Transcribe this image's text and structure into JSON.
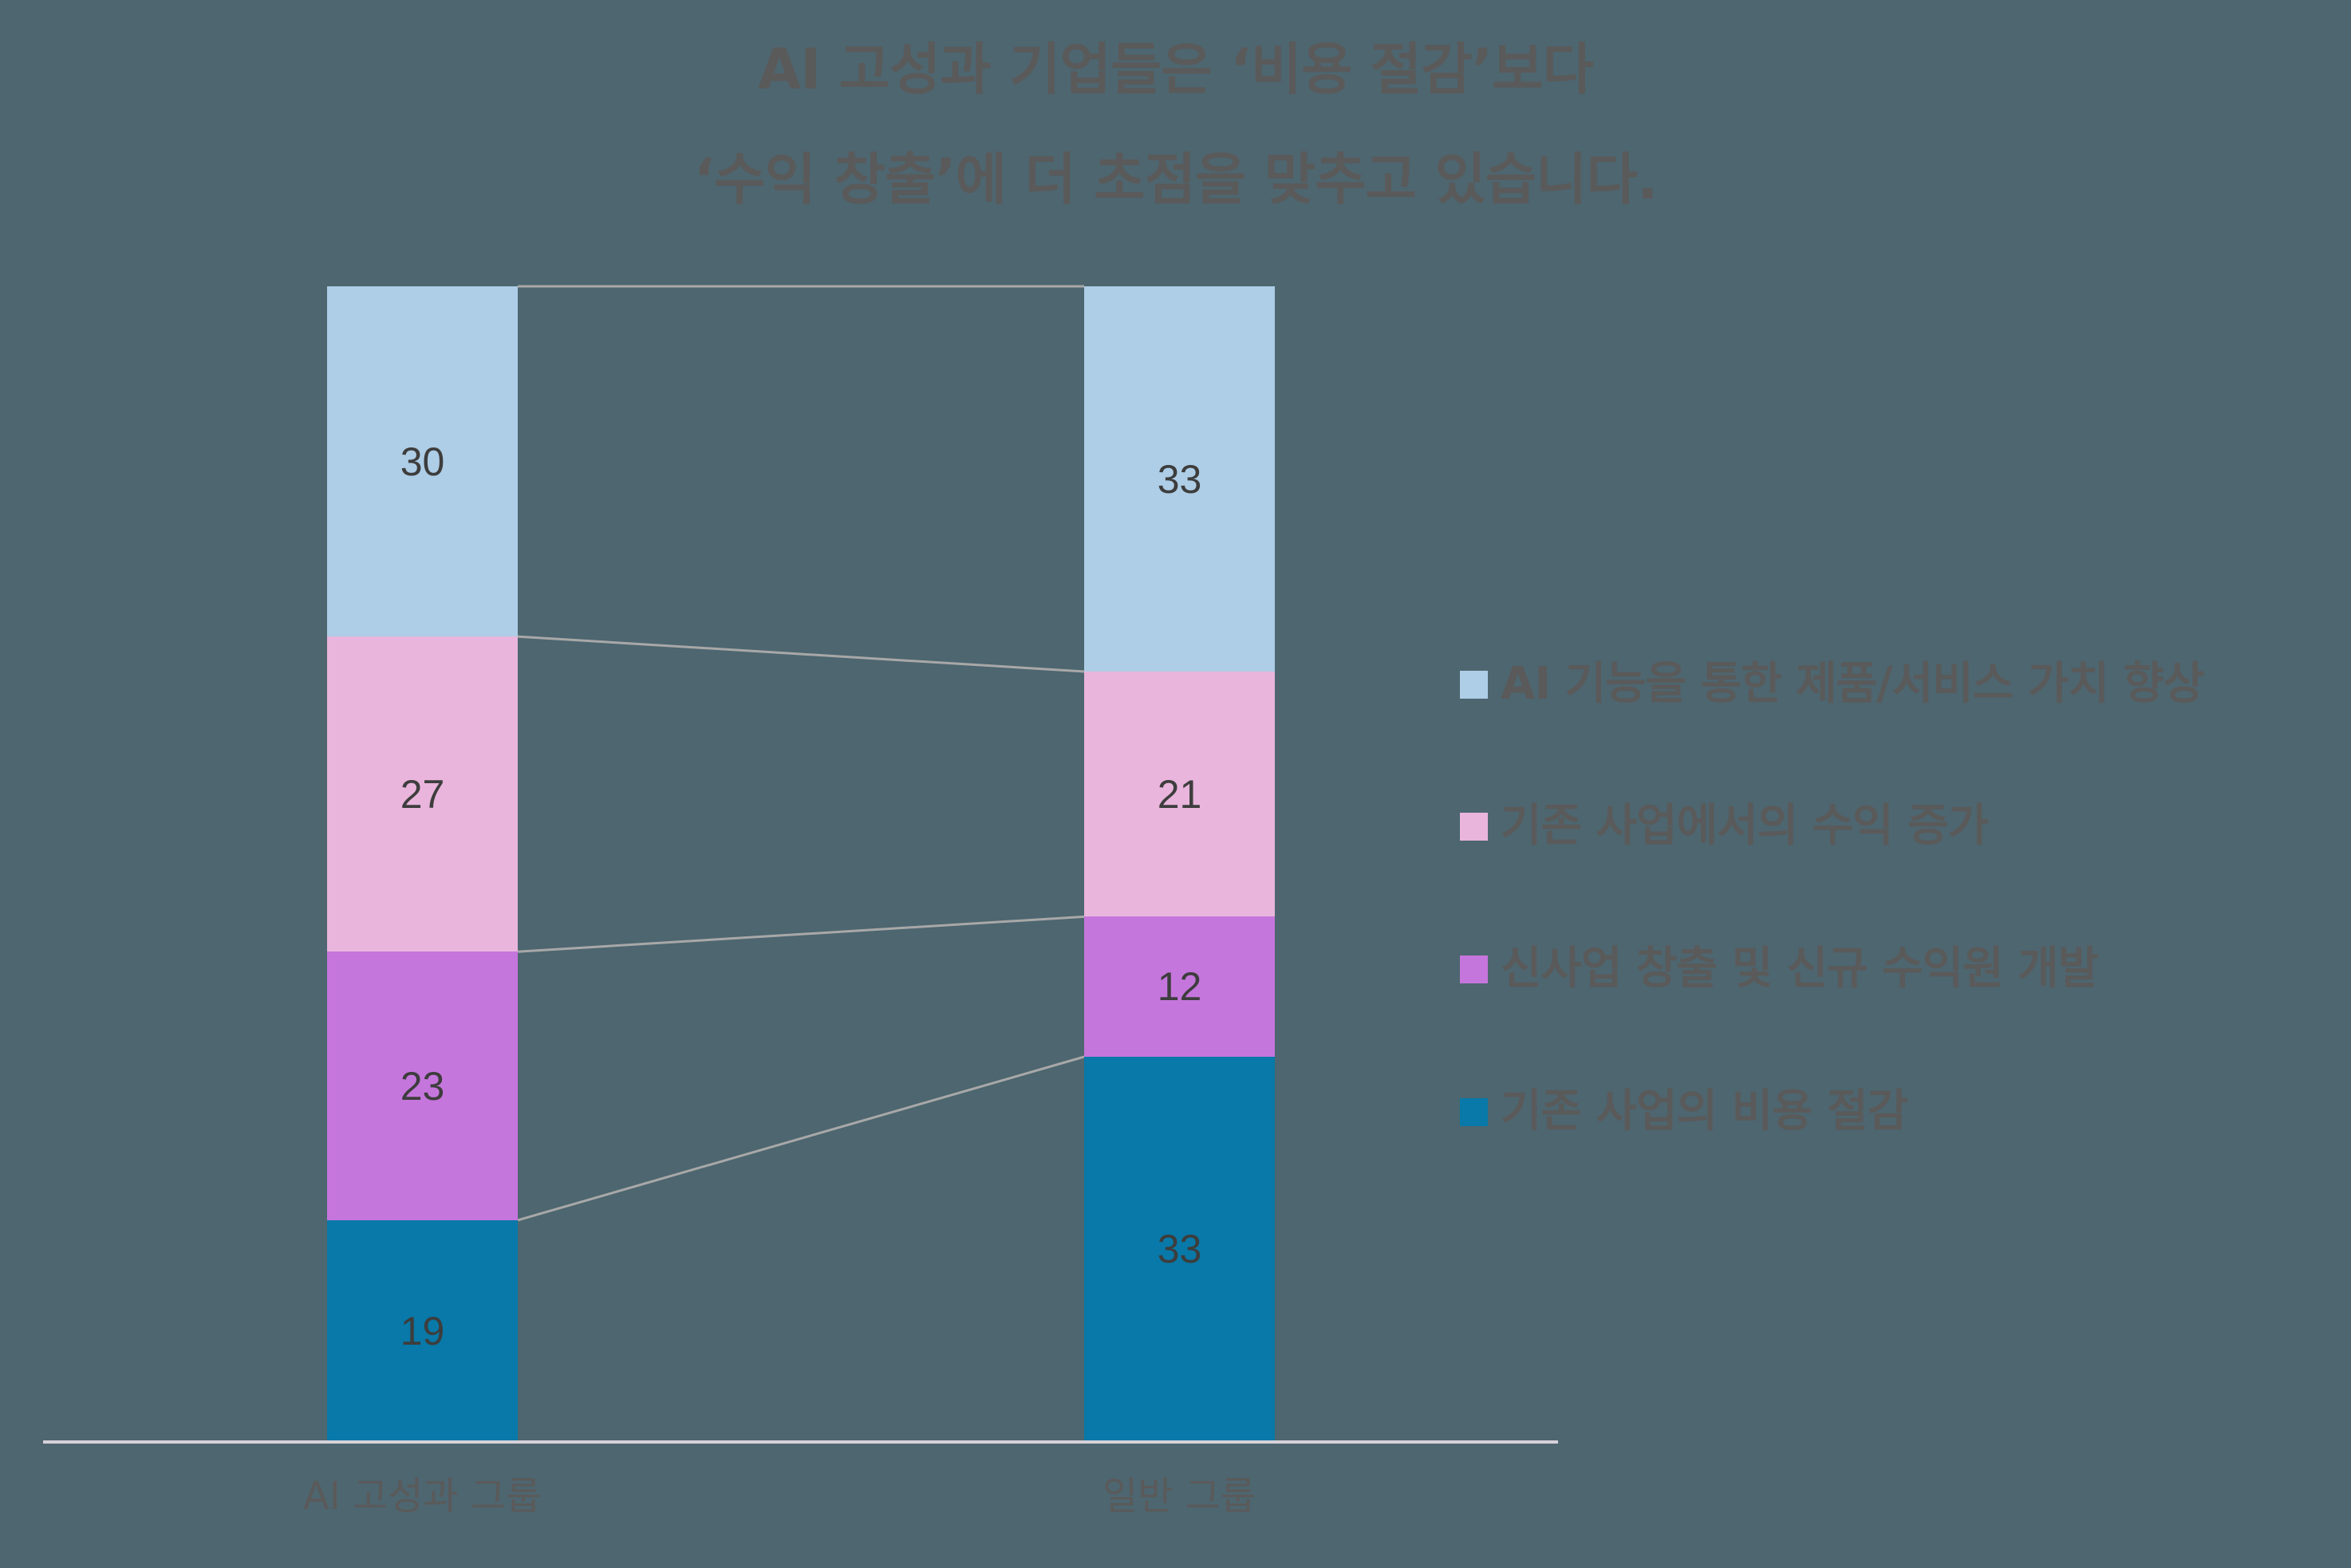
{
  "title": {
    "line1": "AI 고성과 기업들은 ‘비용 절감’보다",
    "line2": "‘수익 창출’에 더 초점을 맞추고 있습니다."
  },
  "colors": {
    "background": "#4d6670",
    "value_enhancement": "#aecde6",
    "revenue_increase": "#e9b5dc",
    "new_business": "#c576dc",
    "cost_reduction": "#0879a8",
    "connector": "#a8a8a8",
    "baseline": "#d6d1d9",
    "text": "#5a5a5a",
    "label_text": "#3d3d3d"
  },
  "legend": [
    {
      "label": "AI 기능을 통한 제품/서비스 가치 향상",
      "color": "#aecde6"
    },
    {
      "label": "기존 사업에서의 수익 증가",
      "color": "#e9b5dc"
    },
    {
      "label": "신사업 창출 및 신규 수익원 개발",
      "color": "#c576dc"
    },
    {
      "label": "기존 사업의 비용 절감",
      "color": "#0879a8"
    }
  ],
  "groups": [
    {
      "label": "AI 고성과 그룹",
      "segments": [
        {
          "value": "30",
          "color": "#aecde6"
        },
        {
          "value": "27",
          "color": "#e9b5dc"
        },
        {
          "value": "23",
          "color": "#c576dc"
        },
        {
          "value": "19",
          "color": "#0879a8"
        }
      ]
    },
    {
      "label": "일반 그룹",
      "segments": [
        {
          "value": "33",
          "color": "#aecde6"
        },
        {
          "value": "21",
          "color": "#e9b5dc"
        },
        {
          "value": "12",
          "color": "#c576dc"
        },
        {
          "value": "33",
          "color": "#0879a8"
        }
      ]
    }
  ],
  "chart_data": {
    "type": "bar",
    "stacked": true,
    "title": "AI 고성과 기업들은 ‘비용 절감’보다 ‘수익 창출’에 더 초점을 맞추고 있습니다.",
    "categories": [
      "AI 고성과 그룹",
      "일반 그룹"
    ],
    "series": [
      {
        "name": "AI 기능을 통한 제품/서비스 가치 향상",
        "values": [
          30,
          33
        ]
      },
      {
        "name": "기존 사업에서의 수익 증가",
        "values": [
          27,
          21
        ]
      },
      {
        "name": "신사업 창출 및 신규 수익원 개발",
        "values": [
          23,
          12
        ]
      },
      {
        "name": "기존 사업의 비용 절감",
        "values": [
          19,
          33
        ]
      }
    ],
    "stack_order_bottom_to_top": [
      "기존 사업의 비용 절감",
      "신사업 창출 및 신규 수익원 개발",
      "기존 사업에서의 수익 증가",
      "AI 기능을 통한 제품/서비스 가치 향상"
    ],
    "xlabel": "",
    "ylabel": "",
    "grid": false,
    "legend_position": "right",
    "data_labels": true,
    "series_connector_lines": true
  }
}
